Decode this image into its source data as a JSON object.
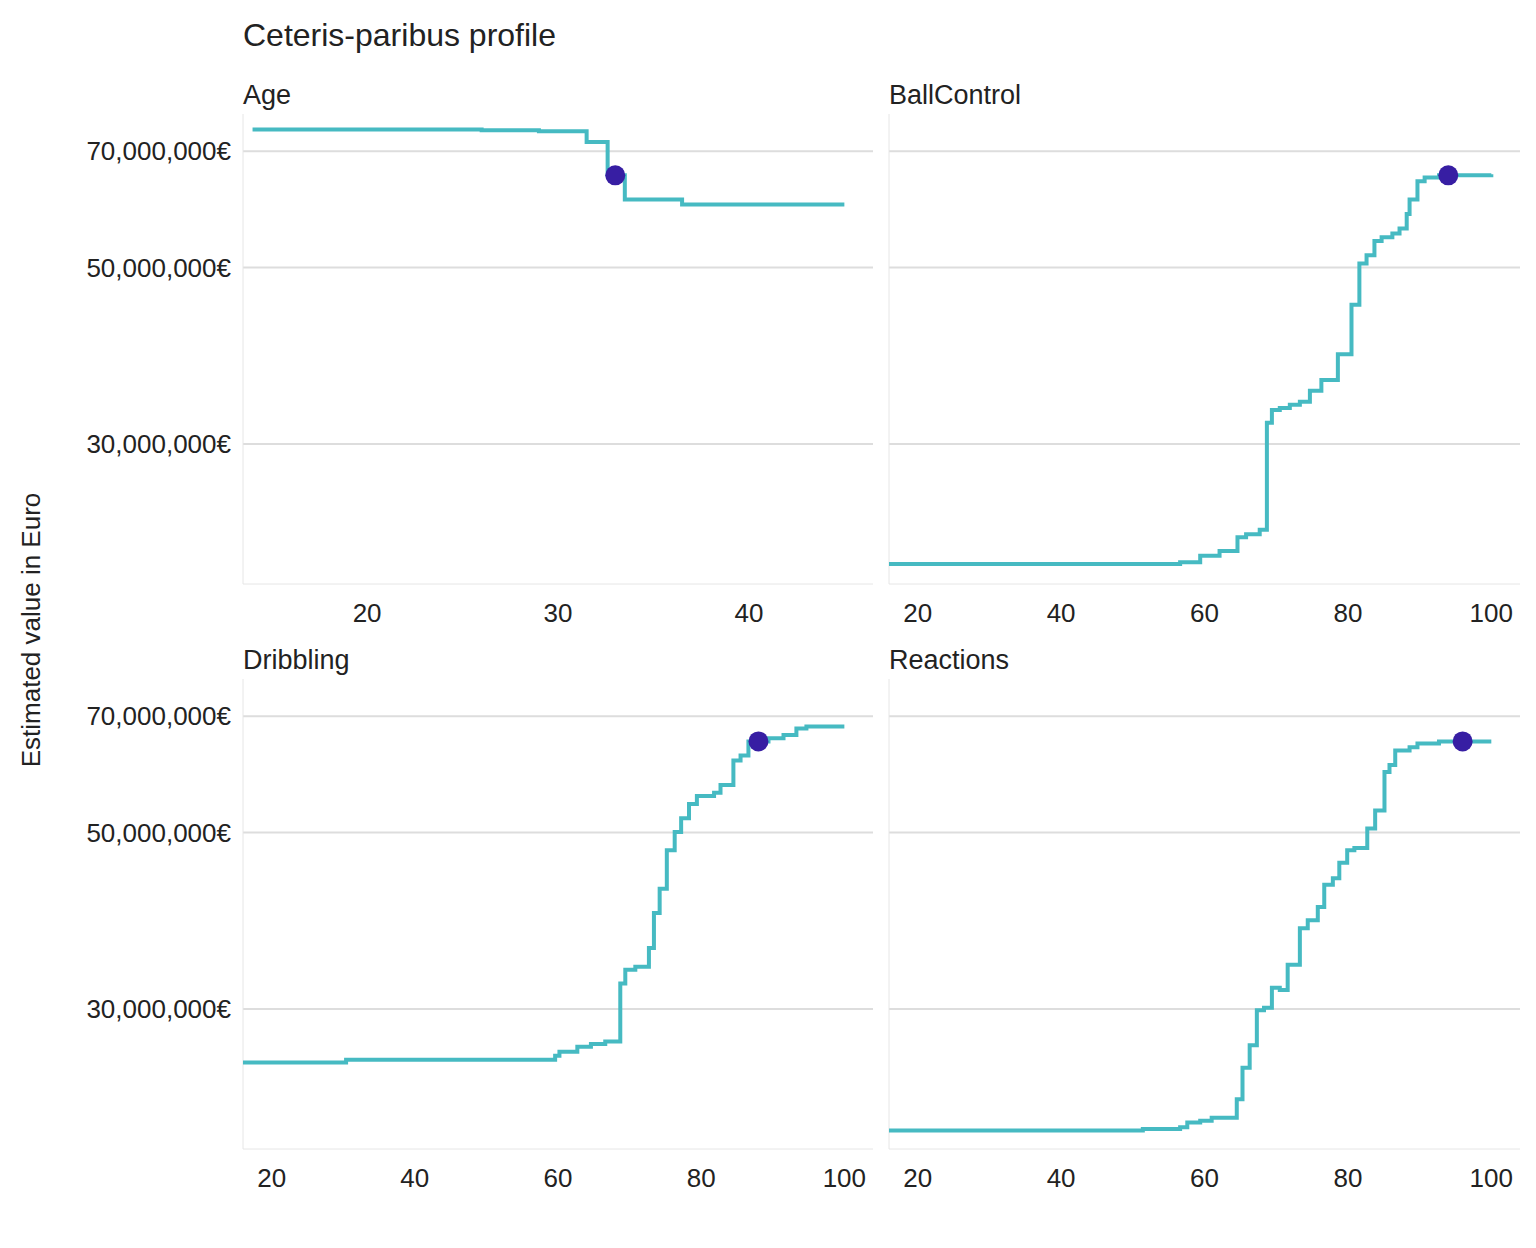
{
  "title": "Ceteris-paribus profile",
  "y_label": "Estimated value in Euro",
  "chart_data": [
    {
      "type": "line",
      "title": "Age",
      "log": "y",
      "grid": true,
      "line_style": "step",
      "color": "#46bac2",
      "xlim": [
        13.5,
        46.5
      ],
      "xticks": [
        20,
        30,
        40
      ],
      "ylim": [
        20000000,
        78000000
      ],
      "yticks": [
        {
          "value": 30000000,
          "label": "30,000,000€"
        },
        {
          "value": 50000000,
          "label": "50,000,000€"
        },
        {
          "value": 70000000,
          "label": "70,000,000€"
        }
      ],
      "x": [
        14,
        26,
        29,
        31.5,
        32.6,
        33.5,
        36.5,
        45
      ],
      "values": [
        74600000,
        74400000,
        74200000,
        71900000,
        65300000,
        60900000,
        60000000,
        60000000
      ],
      "observation": {
        "x": 33,
        "value": 65300000,
        "color": "#371ea3",
        "marker": "circle"
      }
    },
    {
      "type": "line",
      "title": "BallControl",
      "log": "y",
      "grid": true,
      "line_style": "step",
      "color": "#46bac2",
      "tick_labels": "x",
      "xlim": [
        16,
        104
      ],
      "xticks": [
        20,
        40,
        60,
        80,
        100
      ],
      "ylim": [
        20000000,
        78000000
      ],
      "yticks": [
        {
          "value": 30000000,
          "label": "30,000,000€"
        },
        {
          "value": 50000000,
          "label": "50,000,000€"
        },
        {
          "value": 70000000,
          "label": "70,000,000€"
        }
      ],
      "x": [
        16,
        56.6,
        59.4,
        62.1,
        64.6,
        65.8,
        67.7,
        68.7,
        69.4,
        70.5,
        71.9,
        73.3,
        74.7,
        76.3,
        78.6,
        80.5,
        81.6,
        82.6,
        83.7,
        84.7,
        86.2,
        87.2,
        88.2,
        88.6,
        89.7,
        90.7,
        92.7,
        100
      ],
      "values": [
        21200000,
        21300000,
        21700000,
        22000000,
        22900000,
        23100000,
        23400000,
        31900000,
        33100000,
        33300000,
        33600000,
        33900000,
        35000000,
        36100000,
        38900000,
        44900000,
        50600000,
        51800000,
        54000000,
        54600000,
        55200000,
        56000000,
        58400000,
        60900000,
        64200000,
        64900000,
        65300000,
        65500000
      ],
      "observation": {
        "x": 94,
        "value": 65300000,
        "color": "#371ea3",
        "marker": "circle"
      }
    },
    {
      "type": "line",
      "title": "Dribbling",
      "log": "y",
      "grid": true,
      "line_style": "step",
      "color": "#46bac2",
      "xlim": [
        16,
        104
      ],
      "xticks": [
        20,
        40,
        60,
        80,
        100
      ],
      "ylim": [
        20000000,
        78000000
      ],
      "yticks": [
        {
          "value": 30000000,
          "label": "30,000,000€"
        },
        {
          "value": 50000000,
          "label": "50,000,000€"
        },
        {
          "value": 70000000,
          "label": "70,000,000€"
        }
      ],
      "x": [
        16,
        30.4,
        59.6,
        60.2,
        62.7,
        64.6,
        66.6,
        68.7,
        69.4,
        70.8,
        72.7,
        73.4,
        74.2,
        75.2,
        76.3,
        77.2,
        78.3,
        79.4,
        81.8,
        82.7,
        84.5,
        85.5,
        86.6,
        89.4,
        91.5,
        93.3,
        94.7,
        100
      ],
      "values": [
        25700000,
        25900000,
        26200000,
        26500000,
        26900000,
        27100000,
        27300000,
        32300000,
        33600000,
        33900000,
        35800000,
        39600000,
        42500000,
        47500000,
        50100000,
        52100000,
        54300000,
        55600000,
        56100000,
        57400000,
        61600000,
        62500000,
        65100000,
        65700000,
        66300000,
        67600000,
        68000000,
        68000000
      ],
      "observation": {
        "x": 88,
        "value": 65100000,
        "color": "#371ea3",
        "marker": "circle"
      }
    },
    {
      "type": "line",
      "title": "Reactions",
      "log": "y",
      "grid": true,
      "line_style": "step",
      "color": "#46bac2",
      "tick_labels": "x",
      "xlim": [
        16,
        104
      ],
      "xticks": [
        20,
        40,
        60,
        80,
        100
      ],
      "ylim": [
        20000000,
        78000000
      ],
      "yticks": [
        {
          "value": 30000000,
          "label": "30,000,000€"
        },
        {
          "value": 50000000,
          "label": "50,000,000€"
        },
        {
          "value": 70000000,
          "label": "70,000,000€"
        }
      ],
      "x": [
        16,
        51.4,
        56.6,
        57.6,
        59.4,
        61.0,
        64.5,
        65.3,
        66.3,
        67.3,
        68.3,
        69.4,
        70.5,
        71.6,
        73.3,
        74.4,
        75.8,
        76.7,
        77.9,
        78.8,
        79.9,
        80.9,
        82.7,
        83.8,
        85.1,
        85.8,
        86.6,
        88.6,
        89.7,
        92.7,
        100
      ],
      "values": [
        21100000,
        21200000,
        21300000,
        21600000,
        21700000,
        21900000,
        23100000,
        25300000,
        27000000,
        29900000,
        30100000,
        31900000,
        31700000,
        34100000,
        37900000,
        38800000,
        40300000,
        43000000,
        43800000,
        45800000,
        47500000,
        47800000,
        50600000,
        53300000,
        59600000,
        60800000,
        63400000,
        64000000,
        64700000,
        65100000,
        65100000
      ],
      "observation": {
        "x": 96,
        "value": 65100000,
        "color": "#371ea3",
        "marker": "circle"
      }
    }
  ]
}
